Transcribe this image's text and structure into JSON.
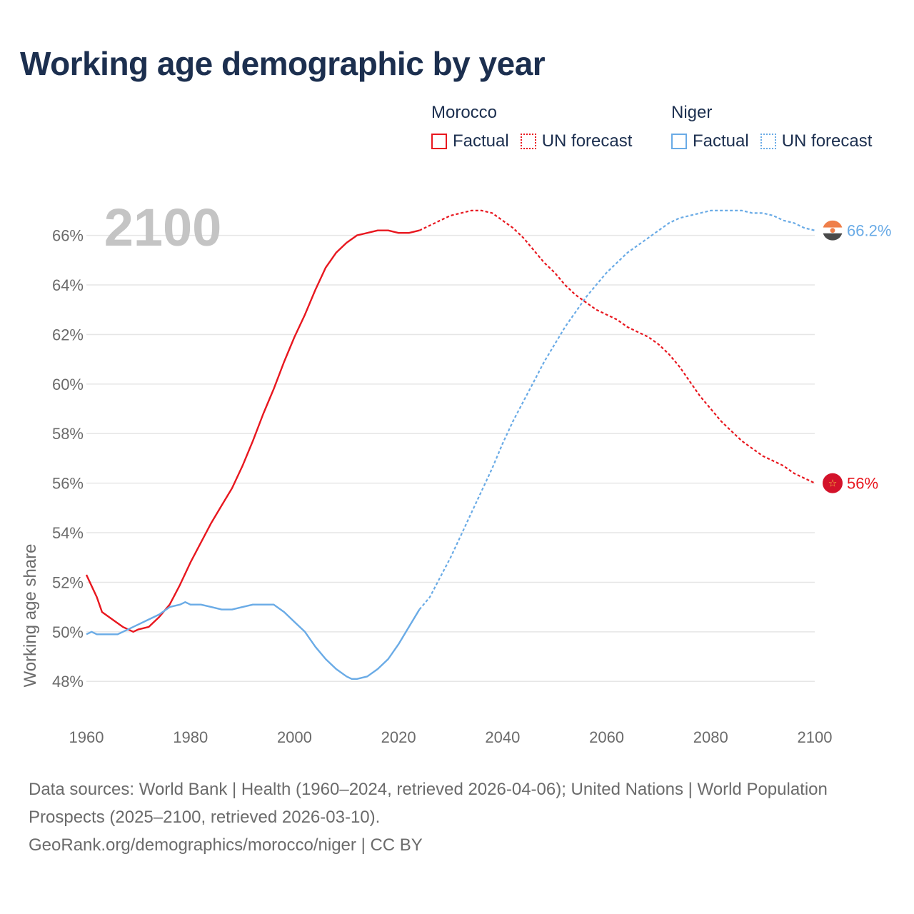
{
  "title": "Working age demographic by year",
  "colors": {
    "morocco": "#e8171f",
    "niger": "#6aabe6",
    "grid": "#e6e6e6",
    "year": "#c4c4c4"
  },
  "legend": {
    "morocco": {
      "country": "Morocco",
      "factual": "Factual",
      "forecast": "UN forecast"
    },
    "niger": {
      "country": "Niger",
      "factual": "Factual",
      "forecast": "UN forecast"
    }
  },
  "chart_data": {
    "type": "line",
    "ylabel": "Working age share",
    "year_label": "2100",
    "ylim": [
      47.2,
      67.2
    ],
    "xlim": [
      1960,
      2100
    ],
    "x_ticks": [
      "1960",
      "1980",
      "2000",
      "2020",
      "2040",
      "2060",
      "2080",
      "2100"
    ],
    "y_ticks": [
      "48%",
      "50%",
      "52%",
      "54%",
      "56%",
      "58%",
      "60%",
      "62%",
      "64%",
      "66%"
    ],
    "y_tick_values": [
      48,
      50,
      52,
      54,
      56,
      58,
      60,
      62,
      64,
      66
    ],
    "forecast_start_year": 2024,
    "series": [
      {
        "name": "Morocco",
        "end_label": "56%",
        "flag_icon": "morocco-flag-icon",
        "points": [
          [
            1960,
            52.3
          ],
          [
            1962,
            51.4
          ],
          [
            1963,
            50.8
          ],
          [
            1965,
            50.5
          ],
          [
            1967,
            50.2
          ],
          [
            1969,
            50.0
          ],
          [
            1970,
            50.1
          ],
          [
            1972,
            50.2
          ],
          [
            1974,
            50.6
          ],
          [
            1976,
            51.1
          ],
          [
            1978,
            51.9
          ],
          [
            1980,
            52.8
          ],
          [
            1982,
            53.6
          ],
          [
            1984,
            54.4
          ],
          [
            1986,
            55.1
          ],
          [
            1988,
            55.8
          ],
          [
            1990,
            56.7
          ],
          [
            1992,
            57.7
          ],
          [
            1994,
            58.8
          ],
          [
            1996,
            59.8
          ],
          [
            1998,
            60.9
          ],
          [
            2000,
            61.9
          ],
          [
            2002,
            62.8
          ],
          [
            2004,
            63.8
          ],
          [
            2006,
            64.7
          ],
          [
            2008,
            65.3
          ],
          [
            2010,
            65.7
          ],
          [
            2012,
            66.0
          ],
          [
            2014,
            66.1
          ],
          [
            2016,
            66.2
          ],
          [
            2018,
            66.2
          ],
          [
            2020,
            66.1
          ],
          [
            2022,
            66.1
          ],
          [
            2024,
            66.2
          ],
          [
            2026,
            66.4
          ],
          [
            2028,
            66.6
          ],
          [
            2030,
            66.8
          ],
          [
            2032,
            66.9
          ],
          [
            2034,
            67.0
          ],
          [
            2036,
            67.0
          ],
          [
            2038,
            66.9
          ],
          [
            2040,
            66.6
          ],
          [
            2042,
            66.3
          ],
          [
            2044,
            65.9
          ],
          [
            2046,
            65.4
          ],
          [
            2048,
            64.9
          ],
          [
            2050,
            64.5
          ],
          [
            2052,
            64.0
          ],
          [
            2054,
            63.6
          ],
          [
            2056,
            63.3
          ],
          [
            2058,
            63.0
          ],
          [
            2060,
            62.8
          ],
          [
            2062,
            62.6
          ],
          [
            2064,
            62.3
          ],
          [
            2066,
            62.1
          ],
          [
            2068,
            61.9
          ],
          [
            2070,
            61.6
          ],
          [
            2072,
            61.2
          ],
          [
            2074,
            60.7
          ],
          [
            2076,
            60.1
          ],
          [
            2078,
            59.5
          ],
          [
            2080,
            59.0
          ],
          [
            2082,
            58.5
          ],
          [
            2084,
            58.1
          ],
          [
            2086,
            57.7
          ],
          [
            2088,
            57.4
          ],
          [
            2090,
            57.1
          ],
          [
            2092,
            56.9
          ],
          [
            2094,
            56.7
          ],
          [
            2096,
            56.4
          ],
          [
            2098,
            56.2
          ],
          [
            2100,
            56.0
          ]
        ]
      },
      {
        "name": "Niger",
        "end_label": "66.2%",
        "flag_icon": "niger-flag-icon",
        "points": [
          [
            1960,
            49.9
          ],
          [
            1961,
            50.0
          ],
          [
            1962,
            49.9
          ],
          [
            1964,
            49.9
          ],
          [
            1966,
            49.9
          ],
          [
            1968,
            50.1
          ],
          [
            1970,
            50.3
          ],
          [
            1972,
            50.5
          ],
          [
            1974,
            50.7
          ],
          [
            1976,
            51.0
          ],
          [
            1978,
            51.1
          ],
          [
            1979,
            51.2
          ],
          [
            1980,
            51.1
          ],
          [
            1982,
            51.1
          ],
          [
            1984,
            51.0
          ],
          [
            1986,
            50.9
          ],
          [
            1988,
            50.9
          ],
          [
            1990,
            51.0
          ],
          [
            1992,
            51.1
          ],
          [
            1994,
            51.1
          ],
          [
            1996,
            51.1
          ],
          [
            1998,
            50.8
          ],
          [
            2000,
            50.4
          ],
          [
            2002,
            50.0
          ],
          [
            2004,
            49.4
          ],
          [
            2006,
            48.9
          ],
          [
            2008,
            48.5
          ],
          [
            2010,
            48.2
          ],
          [
            2011,
            48.1
          ],
          [
            2012,
            48.1
          ],
          [
            2014,
            48.2
          ],
          [
            2016,
            48.5
          ],
          [
            2018,
            48.9
          ],
          [
            2020,
            49.5
          ],
          [
            2022,
            50.2
          ],
          [
            2024,
            50.9
          ],
          [
            2026,
            51.4
          ],
          [
            2028,
            52.2
          ],
          [
            2030,
            53.0
          ],
          [
            2032,
            53.9
          ],
          [
            2034,
            54.8
          ],
          [
            2036,
            55.7
          ],
          [
            2038,
            56.6
          ],
          [
            2040,
            57.6
          ],
          [
            2042,
            58.5
          ],
          [
            2044,
            59.3
          ],
          [
            2046,
            60.1
          ],
          [
            2048,
            60.9
          ],
          [
            2050,
            61.6
          ],
          [
            2052,
            62.3
          ],
          [
            2054,
            62.9
          ],
          [
            2056,
            63.5
          ],
          [
            2058,
            64.0
          ],
          [
            2060,
            64.5
          ],
          [
            2062,
            64.9
          ],
          [
            2064,
            65.3
          ],
          [
            2066,
            65.6
          ],
          [
            2068,
            65.9
          ],
          [
            2070,
            66.2
          ],
          [
            2072,
            66.5
          ],
          [
            2074,
            66.7
          ],
          [
            2076,
            66.8
          ],
          [
            2078,
            66.9
          ],
          [
            2080,
            67.0
          ],
          [
            2082,
            67.0
          ],
          [
            2084,
            67.0
          ],
          [
            2086,
            67.0
          ],
          [
            2088,
            66.9
          ],
          [
            2090,
            66.9
          ],
          [
            2092,
            66.8
          ],
          [
            2094,
            66.6
          ],
          [
            2096,
            66.5
          ],
          [
            2098,
            66.3
          ],
          [
            2100,
            66.2
          ]
        ]
      }
    ]
  },
  "footer": {
    "sources": "Data sources: World Bank | Health (1960–2024, retrieved 2026-04-06); United Nations | World Population Prospects (2025–2100, retrieved 2026-03-10).",
    "credit": "GeoRank.org/demographics/morocco/niger | CC BY"
  }
}
